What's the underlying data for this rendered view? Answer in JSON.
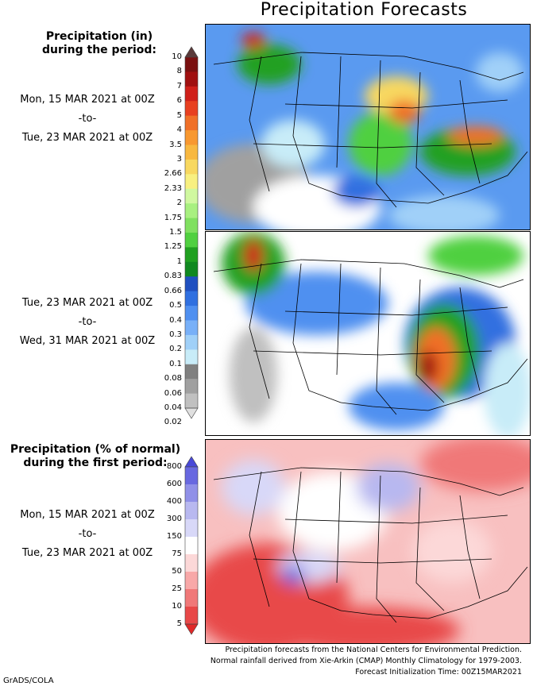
{
  "title": "Precipitation Forecasts",
  "legend1": {
    "heading_line1": "Precipitation (in)",
    "heading_line2": "during the period:",
    "labels": [
      "10",
      "8",
      "7",
      "6",
      "5",
      "4",
      "3.5",
      "3",
      "2.66",
      "2.33",
      "2",
      "1.75",
      "1.5",
      "1.25",
      "1",
      "0.83",
      "0.66",
      "0.5",
      "0.4",
      "0.3",
      "0.2",
      "0.1",
      "0.08",
      "0.06",
      "0.04",
      "0.02"
    ],
    "colors": [
      "#5a3a3a",
      "#7a1010",
      "#a01010",
      "#d0201a",
      "#e84020",
      "#f07028",
      "#f89830",
      "#f8b840",
      "#f8d860",
      "#f8f080",
      "#d0f8a0",
      "#a8f080",
      "#80e060",
      "#50d040",
      "#20a020",
      "#108820",
      "#2050c0",
      "#3070e0",
      "#5090f0",
      "#78b0f8",
      "#a0d0f8",
      "#c8ecf8",
      "#808080",
      "#a0a0a0",
      "#c0c0c0",
      "#e0e0e0"
    ]
  },
  "period1": {
    "start": "Mon, 15 MAR 2021 at 00Z",
    "sep": "-to-",
    "end": "Tue, 23 MAR 2021 at 00Z"
  },
  "period2": {
    "start": "Tue, 23 MAR 2021 at 00Z",
    "sep": "-to-",
    "end": "Wed, 31 MAR 2021 at 00Z"
  },
  "legend2": {
    "heading_line1": "Precipitation (% of normal)",
    "heading_line2": "during the first period:",
    "labels": [
      "800",
      "600",
      "400",
      "300",
      "150",
      "75",
      "50",
      "25",
      "10",
      "5"
    ],
    "colors": [
      "#4848d8",
      "#6868e0",
      "#9090e8",
      "#b8b8f0",
      "#d8d8f8",
      "#ffffff",
      "#fcd8d8",
      "#f8a8a8",
      "#f07878",
      "#e84848",
      "#e02828"
    ]
  },
  "period3": {
    "start": "Mon, 15 MAR 2021 at 00Z",
    "sep": "-to-",
    "end": "Tue, 23 MAR 2021 at 00Z"
  },
  "footer": {
    "line1": "Precipitation forecasts from the National Centers for Environmental Prediction.",
    "line2": "Normal rainfall derived from Xie-Arkin (CMAP) Monthly Climatology for 1979-2003.",
    "line3": "Forecast Initialization Time: 00Z15MAR2021"
  },
  "credit": "GrADS/COLA"
}
